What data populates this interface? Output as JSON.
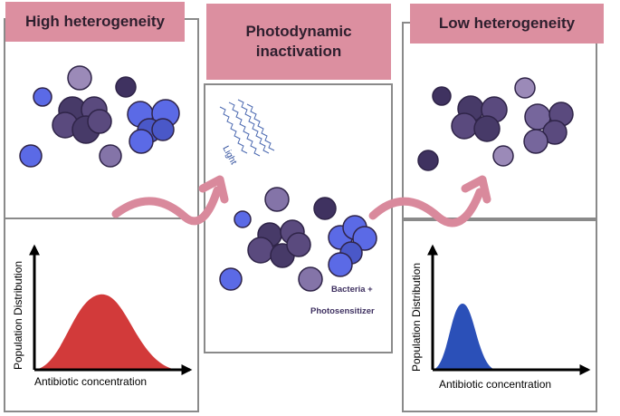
{
  "left": {
    "title": "High heterogeneity",
    "y_label": "Population Distribution",
    "x_label": "Antibiotic concentration"
  },
  "center": {
    "title": "Photodynamic inactivation",
    "light_label": "Light",
    "bacteria_label": "Bacteria +",
    "photosensitizer_label": "Photosensitizer"
  },
  "right": {
    "title": "Low heterogeneity",
    "y_label": "Population Distribution",
    "x_label": "Antibiotic concentration"
  },
  "colors": {
    "title_bg": "#dc8fa0",
    "arrow": "#d9899c",
    "dark_purple": "#473a68",
    "mid_purple": "#76669c",
    "light_purple": "#9b8ab8",
    "blue": "#5b6ae6",
    "red_curve": "#d23a3a",
    "blue_curve": "#2b50b8"
  }
}
